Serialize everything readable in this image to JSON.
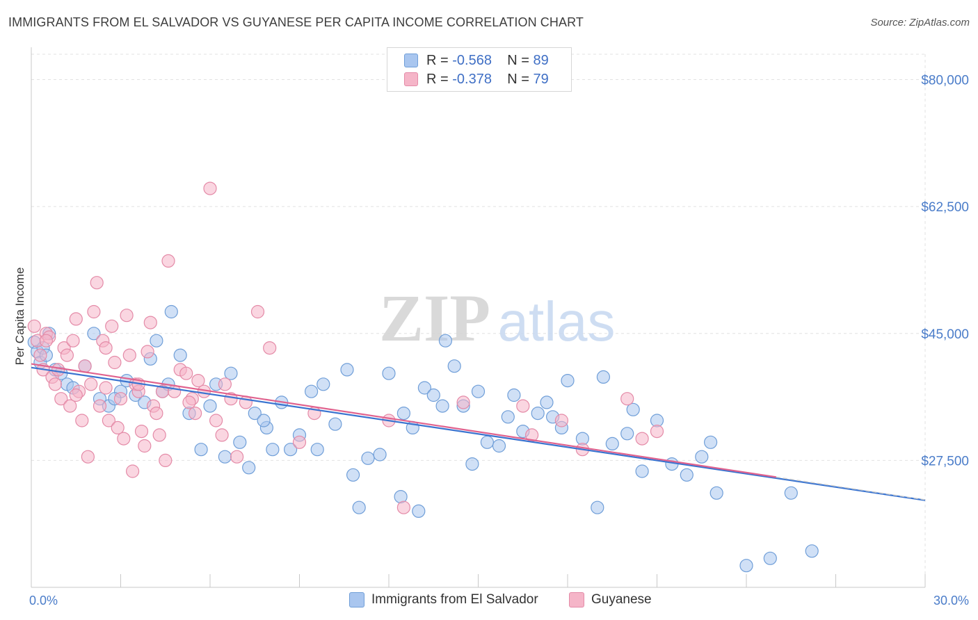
{
  "header": {
    "title": "IMMIGRANTS FROM EL SALVADOR VS GUYANESE PER CAPITA INCOME CORRELATION CHART",
    "source": "Source: ZipAtlas.com"
  },
  "watermark": {
    "zip": "ZIP",
    "atlas": "atlas"
  },
  "legend": {
    "rows": [
      {
        "r_label": "R =",
        "r_value": "-0.568",
        "n_label": "N =",
        "n_value": "89",
        "color": "#a9c6ef"
      },
      {
        "r_label": "R =",
        "r_value": "-0.378",
        "n_label": "N =",
        "n_value": "79",
        "color": "#f5b5c8"
      }
    ]
  },
  "bottom_legend": [
    {
      "label": "Immigrants from El Salvador",
      "color": "#a9c6ef"
    },
    {
      "label": "Guyanese",
      "color": "#f5b5c8"
    }
  ],
  "colors": {
    "blue_fill": "#a9c6ef",
    "blue_stroke": "#6f9ed8",
    "blue_line": "#3a74d0",
    "pink_fill": "#f5b5c8",
    "pink_stroke": "#e48aa7",
    "pink_line": "#e0628e",
    "tick_label": "#4a7cc9",
    "grid": "#e2e2e2"
  },
  "chart_data": {
    "type": "scatter",
    "title": "IMMIGRANTS FROM EL SALVADOR VS GUYANESE PER CAPITA INCOME CORRELATION CHART",
    "xlabel": "",
    "ylabel": "Per Capita Income",
    "xlim": [
      0,
      30
    ],
    "ylim": [
      10000,
      83500
    ],
    "x_tick_labels": [
      "0.0%",
      "30.0%"
    ],
    "y_ticks": [
      27500,
      45000,
      62500,
      80000
    ],
    "y_tick_labels": [
      "$27,500",
      "$45,000",
      "$62,500",
      "$80,000"
    ],
    "grid": true,
    "legend_position": "top-center",
    "series": [
      {
        "name": "Immigrants from El Salvador",
        "r": -0.568,
        "n": 89,
        "trend": {
          "x": [
            0,
            30
          ],
          "y": [
            40300,
            22000
          ]
        },
        "x": [
          0.1,
          0.2,
          0.3,
          0.4,
          0.5,
          0.6,
          0.8,
          1.0,
          1.2,
          1.4,
          1.8,
          2.1,
          2.3,
          2.6,
          3.0,
          3.2,
          3.5,
          3.8,
          4.0,
          4.2,
          4.4,
          4.6,
          5.0,
          5.3,
          5.7,
          6.0,
          6.5,
          6.7,
          7.0,
          7.3,
          7.5,
          7.9,
          8.1,
          8.4,
          8.7,
          9.0,
          9.4,
          9.8,
          10.2,
          10.6,
          10.8,
          11.0,
          11.3,
          11.7,
          12.0,
          12.4,
          12.8,
          13.0,
          13.2,
          13.5,
          13.8,
          14.2,
          14.5,
          14.8,
          15.0,
          15.3,
          15.7,
          16.0,
          16.2,
          16.5,
          17.0,
          17.3,
          17.5,
          18.0,
          18.5,
          19.0,
          19.5,
          20.0,
          20.2,
          20.5,
          21.0,
          21.5,
          22.0,
          22.5,
          23.0,
          24.0,
          24.8,
          25.5,
          26.2,
          2.8,
          4.7,
          6.2,
          7.8,
          12.5,
          13.9,
          17.8,
          19.2,
          22.8,
          9.6
        ],
        "y": [
          43800,
          42500,
          41000,
          43000,
          42000,
          45000,
          40000,
          39500,
          38000,
          37500,
          40500,
          45000,
          36000,
          35000,
          37000,
          38500,
          36500,
          35500,
          41500,
          44000,
          37000,
          38000,
          42000,
          34000,
          29000,
          35000,
          28000,
          39500,
          30000,
          26500,
          34000,
          32000,
          29000,
          35500,
          29000,
          31000,
          37000,
          38000,
          32500,
          40000,
          25500,
          21000,
          27800,
          28300,
          39500,
          22500,
          32000,
          20500,
          37500,
          36500,
          35000,
          40500,
          35000,
          27000,
          37000,
          30000,
          29500,
          33500,
          36500,
          31500,
          34000,
          35500,
          33500,
          38500,
          30500,
          21000,
          29800,
          31200,
          34500,
          26000,
          33000,
          27000,
          25500,
          28000,
          23000,
          13000,
          14000,
          23000,
          15000,
          36000,
          48000,
          38000,
          33000,
          34000,
          44000,
          32000,
          39000,
          30000,
          29000
        ],
        "jitter": "none"
      },
      {
        "name": "Guyanese",
        "r": -0.378,
        "n": 79,
        "trend": {
          "x": [
            0,
            25
          ],
          "y": [
            40800,
            25200
          ]
        },
        "x": [
          0.1,
          0.2,
          0.3,
          0.4,
          0.5,
          0.6,
          0.7,
          0.8,
          0.9,
          1.0,
          1.1,
          1.2,
          1.3,
          1.4,
          1.5,
          1.6,
          1.7,
          1.8,
          1.9,
          2.0,
          2.1,
          2.2,
          2.3,
          2.4,
          2.5,
          2.6,
          2.7,
          2.8,
          2.9,
          3.0,
          3.1,
          3.2,
          3.3,
          3.4,
          3.5,
          3.6,
          3.7,
          3.8,
          3.9,
          4.0,
          4.1,
          4.2,
          4.3,
          4.4,
          4.5,
          4.6,
          4.8,
          5.0,
          5.2,
          5.4,
          5.5,
          5.6,
          5.8,
          6.0,
          6.2,
          6.4,
          6.5,
          6.7,
          6.9,
          7.2,
          7.6,
          8.0,
          9.0,
          9.5,
          12.0,
          12.5,
          14.5,
          16.5,
          16.8,
          17.8,
          18.5,
          20.0,
          20.5,
          21.0,
          0.5,
          1.5,
          2.5,
          3.6,
          5.3
        ],
        "y": [
          46000,
          44000,
          42000,
          40000,
          45000,
          44500,
          39000,
          38000,
          40000,
          36000,
          43000,
          42000,
          35000,
          44000,
          47000,
          37000,
          33000,
          40500,
          28000,
          38000,
          48000,
          52000,
          35000,
          44000,
          43000,
          33000,
          46000,
          41000,
          32000,
          36000,
          30500,
          47500,
          42000,
          26000,
          38000,
          37000,
          31500,
          29500,
          42500,
          46500,
          35000,
          34000,
          31000,
          37000,
          27500,
          55000,
          37000,
          40000,
          39500,
          36000,
          34000,
          38500,
          37000,
          65000,
          33000,
          31000,
          38000,
          36000,
          28000,
          35500,
          48000,
          43000,
          30000,
          34000,
          33000,
          21000,
          35500,
          35000,
          31000,
          33000,
          29000,
          36000,
          30500,
          31500,
          44000,
          36500,
          37500,
          38000,
          35500
        ],
        "jitter": "none"
      }
    ]
  }
}
